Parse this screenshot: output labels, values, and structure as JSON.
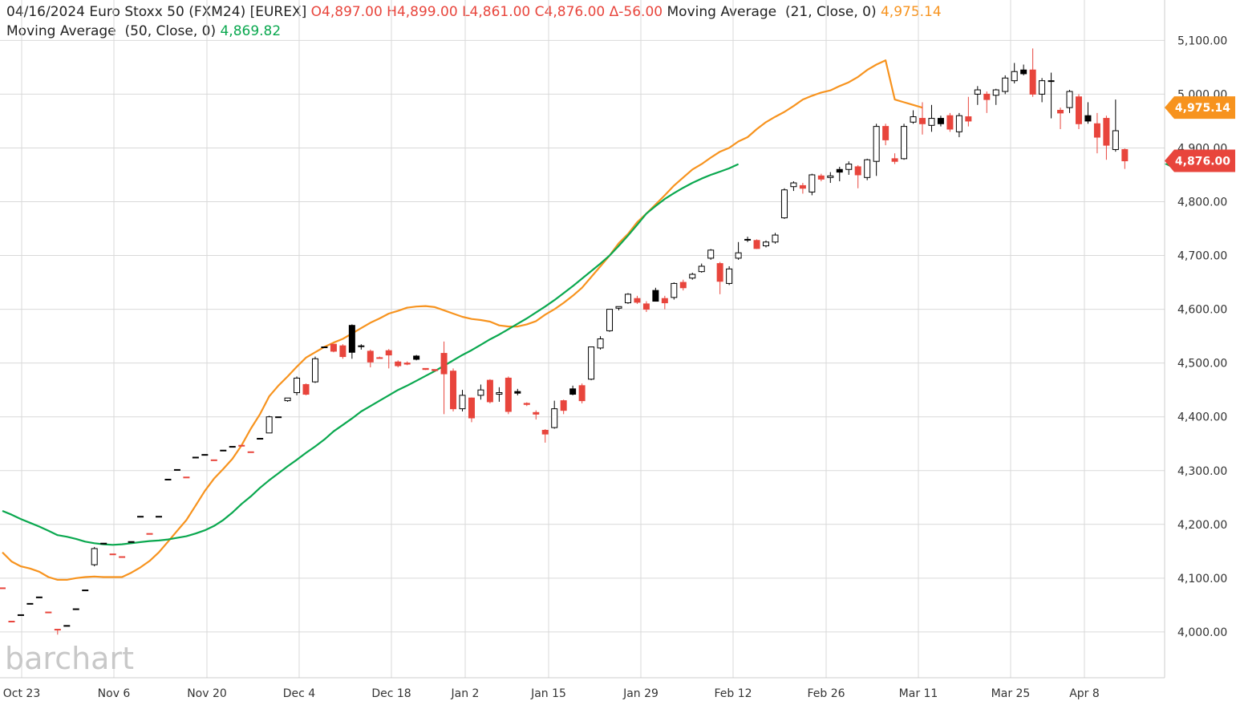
{
  "header": {
    "date": "04/16/2024",
    "instrument": "Euro Stoxx 50 (FXM24) [EUREX]",
    "open": "O4,897.00",
    "high": "H4,899.00",
    "low": "L4,861.00",
    "close": "C4,876.00",
    "change": "Δ-56.00",
    "ma21_label": "Moving Average  (21, Close, 0)",
    "ma21_value": "4,975.14",
    "ma50_label": "Moving Average  (50, Close, 0)",
    "ma50_value": "4,869.82"
  },
  "watermark": "barchart",
  "colors": {
    "up": "#000000",
    "down": "#e8453c",
    "ma21": "#f7931e",
    "ma50": "#0aa84f",
    "grid": "#d9d9d9",
    "axis_text": "#333333"
  },
  "chart_data": {
    "type": "candlestick",
    "title": "Euro Stoxx 50 (FXM24) [EUREX]",
    "ylim": [
      3950,
      5150
    ],
    "y_ticks": [
      "4,000.00",
      "4,100.00",
      "4,200.00",
      "4,300.00",
      "4,400.00",
      "4,500.00",
      "4,600.00",
      "4,700.00",
      "4,800.00",
      "4,900.00",
      "5,000.00",
      "5,100.00"
    ],
    "x_ticks": [
      "Oct 23",
      "Nov 6",
      "Nov 20",
      "Dec 4",
      "Dec 18",
      "Jan 2",
      "Jan 15",
      "Jan 29",
      "Feb 12",
      "Feb 26",
      "Mar 11",
      "Mar 25",
      "Apr 8"
    ],
    "grid": true,
    "last_price_label": "4,876.00",
    "ma21_label_value": "4,975.14",
    "candles": [
      {
        "o": 4082,
        "h": 4082,
        "l": 4082,
        "c": 4082,
        "d": "down"
      },
      {
        "o": 4020,
        "h": 4020,
        "l": 4020,
        "c": 4020,
        "d": "down"
      },
      {
        "o": 4032,
        "h": 4032,
        "l": 4032,
        "c": 4032,
        "d": "up"
      },
      {
        "o": 4053,
        "h": 4053,
        "l": 4053,
        "c": 4053,
        "d": "up"
      },
      {
        "o": 4065,
        "h": 4065,
        "l": 4065,
        "c": 4065,
        "d": "up"
      },
      {
        "o": 4037,
        "h": 4037,
        "l": 4037,
        "c": 4037,
        "d": "down"
      },
      {
        "o": 4005,
        "h": 4005,
        "l": 3995,
        "c": 4005,
        "d": "down"
      },
      {
        "o": 4012,
        "h": 4012,
        "l": 4012,
        "c": 4012,
        "d": "up"
      },
      {
        "o": 4043,
        "h": 4043,
        "l": 4043,
        "c": 4043,
        "d": "up"
      },
      {
        "o": 4078,
        "h": 4078,
        "l": 4078,
        "c": 4078,
        "d": "up"
      },
      {
        "o": 4125,
        "h": 4158,
        "l": 4122,
        "c": 4155,
        "d": "up"
      },
      {
        "o": 4165,
        "h": 4165,
        "l": 4165,
        "c": 4165,
        "d": "up"
      },
      {
        "o": 4145,
        "h": 4145,
        "l": 4145,
        "c": 4145,
        "d": "down"
      },
      {
        "o": 4140,
        "h": 4140,
        "l": 4140,
        "c": 4140,
        "d": "down"
      },
      {
        "o": 4168,
        "h": 4168,
        "l": 4168,
        "c": 4168,
        "d": "up"
      },
      {
        "o": 4215,
        "h": 4215,
        "l": 4215,
        "c": 4215,
        "d": "up"
      },
      {
        "o": 4183,
        "h": 4183,
        "l": 4183,
        "c": 4183,
        "d": "down"
      },
      {
        "o": 4215,
        "h": 4215,
        "l": 4215,
        "c": 4215,
        "d": "up"
      },
      {
        "o": 4284,
        "h": 4284,
        "l": 4284,
        "c": 4284,
        "d": "up"
      },
      {
        "o": 4302,
        "h": 4302,
        "l": 4302,
        "c": 4302,
        "d": "up"
      },
      {
        "o": 4288,
        "h": 4288,
        "l": 4288,
        "c": 4288,
        "d": "down"
      },
      {
        "o": 4325,
        "h": 4325,
        "l": 4325,
        "c": 4325,
        "d": "up"
      },
      {
        "o": 4330,
        "h": 4330,
        "l": 4330,
        "c": 4330,
        "d": "up"
      },
      {
        "o": 4320,
        "h": 4320,
        "l": 4320,
        "c": 4320,
        "d": "down"
      },
      {
        "o": 4338,
        "h": 4338,
        "l": 4338,
        "c": 4338,
        "d": "up"
      },
      {
        "o": 4345,
        "h": 4345,
        "l": 4345,
        "c": 4345,
        "d": "up"
      },
      {
        "o": 4347,
        "h": 4347,
        "l": 4347,
        "c": 4347,
        "d": "down"
      },
      {
        "o": 4335,
        "h": 4335,
        "l": 4335,
        "c": 4335,
        "d": "down"
      },
      {
        "o": 4360,
        "h": 4360,
        "l": 4360,
        "c": 4360,
        "d": "up"
      },
      {
        "o": 4370,
        "h": 4402,
        "l": 4370,
        "c": 4400,
        "d": "up"
      },
      {
        "o": 4400,
        "h": 4400,
        "l": 4400,
        "c": 4400,
        "d": "up"
      },
      {
        "o": 4430,
        "h": 4435,
        "l": 4428,
        "c": 4435,
        "d": "up"
      },
      {
        "o": 4445,
        "h": 4475,
        "l": 4440,
        "c": 4472,
        "d": "up"
      },
      {
        "o": 4460,
        "h": 4462,
        "l": 4440,
        "c": 4442,
        "d": "down"
      },
      {
        "o": 4465,
        "h": 4512,
        "l": 4463,
        "c": 4508,
        "d": "up"
      },
      {
        "o": 4530,
        "h": 4530,
        "l": 4530,
        "c": 4530,
        "d": "up"
      },
      {
        "o": 4535,
        "h": 4535,
        "l": 4520,
        "c": 4522,
        "d": "down"
      },
      {
        "o": 4532,
        "h": 4535,
        "l": 4508,
        "c": 4512,
        "d": "down"
      },
      {
        "o": 4520,
        "h": 4572,
        "l": 4508,
        "c": 4570,
        "d": "up",
        "fill": true
      },
      {
        "o": 4532,
        "h": 4535,
        "l": 4525,
        "c": 4532,
        "d": "up"
      },
      {
        "o": 4522,
        "h": 4525,
        "l": 4492,
        "c": 4502,
        "d": "down"
      },
      {
        "o": 4510,
        "h": 4512,
        "l": 4508,
        "c": 4510,
        "d": "down"
      },
      {
        "o": 4523,
        "h": 4526,
        "l": 4490,
        "c": 4515,
        "d": "down"
      },
      {
        "o": 4502,
        "h": 4505,
        "l": 4492,
        "c": 4495,
        "d": "down"
      },
      {
        "o": 4500,
        "h": 4503,
        "l": 4496,
        "c": 4498,
        "d": "down"
      },
      {
        "o": 4507,
        "h": 4515,
        "l": 4505,
        "c": 4513,
        "d": "up",
        "fill": true
      },
      {
        "o": 4490,
        "h": 4490,
        "l": 4487,
        "c": 4488,
        "d": "down"
      },
      {
        "o": 4488,
        "h": 4488,
        "l": 4484,
        "c": 4486,
        "d": "down"
      },
      {
        "o": 4518,
        "h": 4540,
        "l": 4405,
        "c": 4480,
        "d": "down"
      },
      {
        "o": 4485,
        "h": 4490,
        "l": 4410,
        "c": 4415,
        "d": "down"
      },
      {
        "o": 4415,
        "h": 4450,
        "l": 4410,
        "c": 4440,
        "d": "up"
      },
      {
        "o": 4435,
        "h": 4436,
        "l": 4390,
        "c": 4398,
        "d": "down"
      },
      {
        "o": 4440,
        "h": 4460,
        "l": 4432,
        "c": 4450,
        "d": "up"
      },
      {
        "o": 4468,
        "h": 4470,
        "l": 4425,
        "c": 4428,
        "d": "down"
      },
      {
        "o": 4442,
        "h": 4455,
        "l": 4428,
        "c": 4445,
        "d": "up"
      },
      {
        "o": 4472,
        "h": 4475,
        "l": 4405,
        "c": 4410,
        "d": "down"
      },
      {
        "o": 4447,
        "h": 4452,
        "l": 4440,
        "c": 4444,
        "d": "up",
        "fill": true
      },
      {
        "o": 4425,
        "h": 4427,
        "l": 4420,
        "c": 4423,
        "d": "down"
      },
      {
        "o": 4408,
        "h": 4412,
        "l": 4395,
        "c": 4405,
        "d": "down"
      },
      {
        "o": 4375,
        "h": 4377,
        "l": 4352,
        "c": 4368,
        "d": "down"
      },
      {
        "o": 4380,
        "h": 4430,
        "l": 4378,
        "c": 4415,
        "d": "up"
      },
      {
        "o": 4430,
        "h": 4432,
        "l": 4405,
        "c": 4412,
        "d": "down"
      },
      {
        "o": 4452,
        "h": 4458,
        "l": 4440,
        "c": 4442,
        "d": "up",
        "fill": true
      },
      {
        "o": 4458,
        "h": 4462,
        "l": 4425,
        "c": 4430,
        "d": "down"
      },
      {
        "o": 4470,
        "h": 4530,
        "l": 4468,
        "c": 4530,
        "d": "up"
      },
      {
        "o": 4528,
        "h": 4550,
        "l": 4525,
        "c": 4545,
        "d": "up"
      },
      {
        "o": 4560,
        "h": 4600,
        "l": 4558,
        "c": 4600,
        "d": "up"
      },
      {
        "o": 4602,
        "h": 4605,
        "l": 4598,
        "c": 4605,
        "d": "up"
      },
      {
        "o": 4612,
        "h": 4630,
        "l": 4610,
        "c": 4628,
        "d": "up"
      },
      {
        "o": 4620,
        "h": 4625,
        "l": 4610,
        "c": 4613,
        "d": "down"
      },
      {
        "o": 4610,
        "h": 4615,
        "l": 4595,
        "c": 4600,
        "d": "down"
      },
      {
        "o": 4635,
        "h": 4640,
        "l": 4615,
        "c": 4615,
        "d": "up",
        "fill": true
      },
      {
        "o": 4620,
        "h": 4625,
        "l": 4600,
        "c": 4612,
        "d": "down"
      },
      {
        "o": 4622,
        "h": 4650,
        "l": 4618,
        "c": 4648,
        "d": "up"
      },
      {
        "o": 4650,
        "h": 4655,
        "l": 4635,
        "c": 4640,
        "d": "down"
      },
      {
        "o": 4658,
        "h": 4668,
        "l": 4655,
        "c": 4665,
        "d": "up"
      },
      {
        "o": 4670,
        "h": 4685,
        "l": 4668,
        "c": 4680,
        "d": "up"
      },
      {
        "o": 4695,
        "h": 4712,
        "l": 4692,
        "c": 4710,
        "d": "up"
      },
      {
        "o": 4685,
        "h": 4688,
        "l": 4628,
        "c": 4652,
        "d": "down"
      },
      {
        "o": 4648,
        "h": 4680,
        "l": 4645,
        "c": 4675,
        "d": "up"
      },
      {
        "o": 4695,
        "h": 4725,
        "l": 4692,
        "c": 4705,
        "d": "up"
      },
      {
        "o": 4730,
        "h": 4735,
        "l": 4725,
        "c": 4730,
        "d": "up",
        "fill": true
      },
      {
        "o": 4728,
        "h": 4730,
        "l": 4712,
        "c": 4713,
        "d": "down"
      },
      {
        "o": 4718,
        "h": 4728,
        "l": 4715,
        "c": 4725,
        "d": "up"
      },
      {
        "o": 4725,
        "h": 4742,
        "l": 4722,
        "c": 4738,
        "d": "up"
      },
      {
        "o": 4770,
        "h": 4825,
        "l": 4768,
        "c": 4822,
        "d": "up"
      },
      {
        "o": 4828,
        "h": 4838,
        "l": 4820,
        "c": 4835,
        "d": "up"
      },
      {
        "o": 4830,
        "h": 4835,
        "l": 4815,
        "c": 4825,
        "d": "down"
      },
      {
        "o": 4818,
        "h": 4852,
        "l": 4812,
        "c": 4850,
        "d": "up"
      },
      {
        "o": 4848,
        "h": 4852,
        "l": 4838,
        "c": 4842,
        "d": "down"
      },
      {
        "o": 4845,
        "h": 4855,
        "l": 4835,
        "c": 4848,
        "d": "up"
      },
      {
        "o": 4855,
        "h": 4865,
        "l": 4838,
        "c": 4860,
        "d": "up",
        "fill": true
      },
      {
        "o": 4860,
        "h": 4875,
        "l": 4850,
        "c": 4870,
        "d": "up"
      },
      {
        "o": 4865,
        "h": 4868,
        "l": 4825,
        "c": 4850,
        "d": "down"
      },
      {
        "o": 4845,
        "h": 4880,
        "l": 4840,
        "c": 4878,
        "d": "up"
      },
      {
        "o": 4875,
        "h": 4945,
        "l": 4848,
        "c": 4940,
        "d": "up"
      },
      {
        "o": 4940,
        "h": 4945,
        "l": 4905,
        "c": 4915,
        "d": "down"
      },
      {
        "o": 4880,
        "h": 4890,
        "l": 4870,
        "c": 4875,
        "d": "down"
      },
      {
        "o": 4880,
        "h": 4945,
        "l": 4878,
        "c": 4940,
        "d": "up"
      },
      {
        "o": 4948,
        "h": 4970,
        "l": 4945,
        "c": 4958,
        "d": "up"
      },
      {
        "o": 4955,
        "h": 4985,
        "l": 4925,
        "c": 4945,
        "d": "down"
      },
      {
        "o": 4942,
        "h": 4980,
        "l": 4930,
        "c": 4955,
        "d": "up"
      },
      {
        "o": 4955,
        "h": 4960,
        "l": 4940,
        "c": 4945,
        "d": "up",
        "fill": true
      },
      {
        "o": 4960,
        "h": 4965,
        "l": 4930,
        "c": 4935,
        "d": "down"
      },
      {
        "o": 4930,
        "h": 4965,
        "l": 4920,
        "c": 4960,
        "d": "up"
      },
      {
        "o": 4958,
        "h": 4995,
        "l": 4940,
        "c": 4950,
        "d": "down"
      },
      {
        "o": 5000,
        "h": 5015,
        "l": 4980,
        "c": 5008,
        "d": "up"
      },
      {
        "o": 5000,
        "h": 5005,
        "l": 4965,
        "c": 4990,
        "d": "down"
      },
      {
        "o": 4998,
        "h": 5010,
        "l": 4980,
        "c": 5008,
        "d": "up"
      },
      {
        "o": 5005,
        "h": 5035,
        "l": 5000,
        "c": 5030,
        "d": "up"
      },
      {
        "o": 5025,
        "h": 5058,
        "l": 5020,
        "c": 5042,
        "d": "up"
      },
      {
        "o": 5045,
        "h": 5055,
        "l": 5035,
        "c": 5038,
        "d": "up",
        "fill": true
      },
      {
        "o": 5045,
        "h": 5085,
        "l": 4995,
        "c": 5000,
        "d": "down"
      },
      {
        "o": 5000,
        "h": 5030,
        "l": 4985,
        "c": 5025,
        "d": "up"
      },
      {
        "o": 5025,
        "h": 5040,
        "l": 4955,
        "c": 5025,
        "d": "up"
      },
      {
        "o": 4970,
        "h": 4975,
        "l": 4935,
        "c": 4965,
        "d": "down"
      },
      {
        "o": 4975,
        "h": 5008,
        "l": 4965,
        "c": 5005,
        "d": "up"
      },
      {
        "o": 4995,
        "h": 5000,
        "l": 4935,
        "c": 4945,
        "d": "down"
      },
      {
        "o": 4960,
        "h": 4985,
        "l": 4945,
        "c": 4950,
        "d": "up",
        "fill": true
      },
      {
        "o": 4945,
        "h": 4965,
        "l": 4890,
        "c": 4920,
        "d": "down"
      },
      {
        "o": 4955,
        "h": 4960,
        "l": 4878,
        "c": 4905,
        "d": "down"
      },
      {
        "o": 4932,
        "h": 4990,
        "l": 4893,
        "c": 4897,
        "d": "up"
      },
      {
        "o": 4897,
        "h": 4899,
        "l": 4861,
        "c": 4876,
        "d": "down"
      }
    ],
    "ma21": [
      4148,
      4131,
      4122,
      4118,
      4112,
      4102,
      4097,
      4097,
      4100,
      4102,
      4103,
      4102,
      4102,
      4102,
      4110,
      4120,
      4132,
      4148,
      4168,
      4188,
      4208,
      4235,
      4262,
      4285,
      4303,
      4322,
      4347,
      4378,
      4405,
      4438,
      4458,
      4475,
      4493,
      4510,
      4520,
      4530,
      4538,
      4545,
      4555,
      4565,
      4575,
      4583,
      4592,
      4597,
      4603,
      4605,
      4606,
      4604,
      4598,
      4592,
      4586,
      4582,
      4580,
      4577,
      4570,
      4568,
      4568,
      4572,
      4578,
      4590,
      4600,
      4612,
      4625,
      4640,
      4660,
      4680,
      4700,
      4723,
      4740,
      4762,
      4778,
      4795,
      4812,
      4830,
      4845,
      4860,
      4870,
      4882,
      4893,
      4900,
      4912,
      4920,
      4935,
      4948,
      4958,
      4967,
      4978,
      4990,
      4997,
      5003,
      5007,
      5015,
      5022,
      5032,
      5045,
      5055,
      5063,
      4990,
      4985,
      4980,
      4975
    ],
    "ma50": [
      4225,
      4218,
      4210,
      4203,
      4196,
      4188,
      4180,
      4177,
      4173,
      4168,
      4165,
      4163,
      4162,
      4163,
      4165,
      4167,
      4169,
      4170,
      4172,
      4175,
      4178,
      4183,
      4189,
      4197,
      4208,
      4222,
      4238,
      4252,
      4268,
      4282,
      4295,
      4308,
      4320,
      4333,
      4345,
      4358,
      4373,
      4385,
      4397,
      4410,
      4420,
      4430,
      4440,
      4450,
      4458,
      4467,
      4476,
      4485,
      4495,
      4505,
      4515,
      4524,
      4534,
      4544,
      4553,
      4563,
      4573,
      4583,
      4594,
      4605,
      4617,
      4630,
      4643,
      4657,
      4671,
      4685,
      4700,
      4718,
      4737,
      4757,
      4778,
      4792,
      4805,
      4816,
      4826,
      4835,
      4843,
      4850,
      4856,
      4862,
      4870
    ]
  }
}
